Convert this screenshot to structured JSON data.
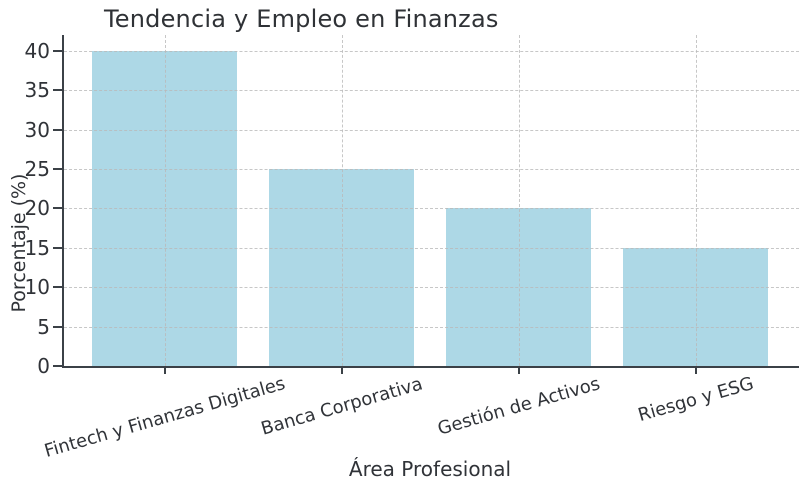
{
  "chart_data": {
    "type": "bar",
    "title": "Tendencia y Empleo en Finanzas",
    "xlabel": "Área Profesional",
    "ylabel": "Porcentaje (%)",
    "categories": [
      "Fintech y Finanzas Digitales",
      "Banca Corporativa",
      "Gestión de Activos",
      "Riesgo y ESG"
    ],
    "values": [
      40,
      25,
      20,
      15
    ],
    "yticks": [
      0,
      5,
      10,
      15,
      20,
      25,
      30,
      35,
      40
    ],
    "ylim": [
      0,
      42
    ],
    "grid": "dashed-both-axes",
    "legend": "none",
    "colors": {
      "bar_fill": "#ADD8E6",
      "spine": "#3B4147",
      "grid_line": "#C9C9C9",
      "text": "#303338",
      "background": "#FFFFFF"
    }
  }
}
